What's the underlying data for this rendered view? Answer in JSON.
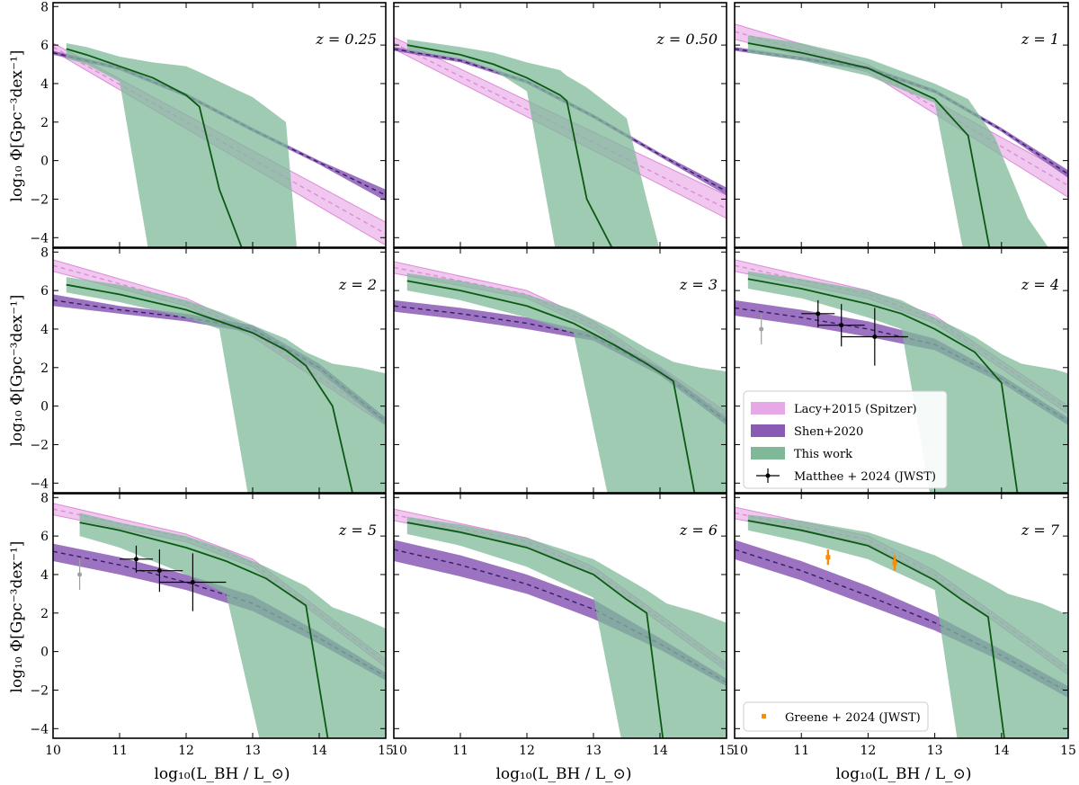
{
  "colors": {
    "lacy": "#e7a9e6",
    "lacy_line": "#e08ad8",
    "shen": "#8a5bb5",
    "shen_line": "#3a1a6a",
    "thiswork": "#7fb99a",
    "thiswork_line": "#0b5a12",
    "matthee": "#000000",
    "matthee_grey": "#a0a0a0",
    "greene": "#ff8c00"
  },
  "axes_text": {
    "xlabel": "log₁₀(L_BH / L_⊙)",
    "ylabel": "log₁₀ Φ[Gpc⁻³dex⁻¹]",
    "xlim": [
      10,
      15
    ],
    "ylim": [
      -4.5,
      8.2
    ],
    "xticks": [
      "10",
      "11",
      "12",
      "13",
      "14",
      "15"
    ],
    "yticks": [
      "−4",
      "−2",
      "0",
      "2",
      "4",
      "6",
      "8"
    ],
    "xtick_values": [
      10,
      11,
      12,
      13,
      14,
      15
    ],
    "ytick_values": [
      -4,
      -2,
      0,
      2,
      4,
      6,
      8
    ]
  },
  "legend": {
    "lacy": "Lacy+2015 (Spitzer)",
    "shen": "Shen+2020",
    "thiswork": "This work",
    "matthee": "Matthee + 2024 (JWST)",
    "greene": "Greene + 2024 (JWST)"
  },
  "chart_data": [
    {
      "type": "line",
      "z_label": "z = 0.25",
      "lacy": {
        "x": [
          10,
          15
        ],
        "mid": [
          5.9,
          -3.8
        ],
        "lo": [
          5.7,
          -4.4
        ],
        "hi": [
          6.1,
          -3.2
        ]
      },
      "shen": {
        "x": [
          10,
          11,
          12,
          13,
          14,
          15
        ],
        "mid": [
          5.6,
          4.8,
          3.4,
          1.6,
          -0.1,
          -1.8
        ],
        "lo": [
          5.5,
          4.7,
          3.3,
          1.5,
          -0.2,
          -2.1
        ],
        "hi": [
          5.7,
          4.9,
          3.5,
          1.7,
          0.0,
          -1.5
        ]
      },
      "thiswork": {
        "x": [
          10.2,
          10.5,
          11.0,
          11.5,
          12.0,
          12.2,
          12.5,
          13.0,
          13.5,
          13.7,
          15.0
        ],
        "mid": [
          5.8,
          5.5,
          4.9,
          4.3,
          3.4,
          2.8,
          -1.5,
          -6,
          -6,
          -6,
          -6
        ],
        "lo": [
          5.3,
          5.0,
          4.1,
          -6,
          -6,
          -6,
          -6,
          -6,
          -6,
          -6,
          -6
        ],
        "hi": [
          6.1,
          5.9,
          5.4,
          5.1,
          4.9,
          4.6,
          4.1,
          3.3,
          2.0,
          -6,
          -6
        ]
      },
      "points": []
    },
    {
      "type": "line",
      "z_label": "z = 0.50",
      "lacy": {
        "x": [
          10,
          15
        ],
        "mid": [
          6.1,
          -2.5
        ],
        "lo": [
          5.8,
          -3.0
        ],
        "hi": [
          6.4,
          -1.8
        ]
      },
      "shen": {
        "x": [
          10,
          11,
          12,
          13,
          14,
          15
        ],
        "mid": [
          5.8,
          5.2,
          4.1,
          2.3,
          0.3,
          -1.6
        ],
        "lo": [
          5.7,
          5.1,
          4.0,
          2.2,
          0.2,
          -1.8
        ],
        "hi": [
          5.9,
          5.3,
          4.2,
          2.4,
          0.4,
          -1.4
        ]
      },
      "thiswork": {
        "x": [
          10.2,
          11.0,
          11.5,
          12.0,
          12.5,
          12.6,
          12.9,
          13.5,
          13.8,
          14.1,
          15.0
        ],
        "mid": [
          6.0,
          5.5,
          5.0,
          4.3,
          3.4,
          3.1,
          -2,
          -6,
          -6,
          -6,
          -6
        ],
        "lo": [
          5.7,
          5.3,
          4.7,
          3.6,
          -6,
          -6,
          -6,
          -6,
          -6,
          -6,
          -6
        ],
        "hi": [
          6.3,
          5.9,
          5.6,
          5.1,
          4.7,
          4.4,
          3.8,
          2.2,
          -2,
          -6,
          -6
        ]
      },
      "points": []
    },
    {
      "type": "line",
      "z_label": "z = 1",
      "lacy": {
        "x": [
          10,
          12,
          15
        ],
        "mid": [
          6.7,
          4.8,
          -1.3
        ],
        "lo": [
          6.3,
          4.6,
          -1.9
        ],
        "hi": [
          7.1,
          5.0,
          -0.7
        ]
      },
      "shen": {
        "x": [
          10,
          11,
          12,
          13,
          14,
          15
        ],
        "mid": [
          5.8,
          5.3,
          4.8,
          3.6,
          1.6,
          -0.7
        ],
        "lo": [
          5.7,
          5.2,
          4.7,
          3.5,
          1.5,
          -0.9
        ],
        "hi": [
          5.9,
          5.4,
          4.9,
          3.7,
          1.7,
          -0.5
        ]
      },
      "thiswork": {
        "x": [
          10.2,
          11.0,
          12.0,
          13.0,
          13.5,
          13.9,
          14.4,
          15.0
        ],
        "mid": [
          6.1,
          5.6,
          4.8,
          3.2,
          1.3,
          -6,
          -6,
          -6
        ],
        "lo": [
          5.6,
          5.2,
          4.4,
          3.0,
          -6,
          -6,
          -6,
          -6
        ],
        "hi": [
          6.5,
          6.1,
          5.3,
          4.0,
          3.2,
          1.2,
          -3,
          -6
        ]
      },
      "points": []
    },
    {
      "type": "line",
      "z_label": "z = 2",
      "lacy": {
        "x": [
          10,
          12,
          13,
          15
        ],
        "mid": [
          7.3,
          5.4,
          3.8,
          -0.8
        ],
        "lo": [
          7.0,
          5.2,
          3.6,
          -1.0
        ],
        "hi": [
          7.6,
          5.6,
          4.0,
          -0.6
        ]
      },
      "shen": {
        "x": [
          10,
          11,
          12,
          13,
          14,
          15
        ],
        "mid": [
          5.5,
          5.0,
          4.6,
          4.0,
          2.0,
          -0.8
        ],
        "lo": [
          5.2,
          4.8,
          4.4,
          3.8,
          1.8,
          -1.0
        ],
        "hi": [
          5.8,
          5.2,
          4.8,
          4.2,
          2.2,
          -0.6
        ]
      },
      "thiswork": {
        "x": [
          10.2,
          11.0,
          12.0,
          12.5,
          13.0,
          13.5,
          13.8,
          14.2,
          14.6,
          15.0
        ],
        "mid": [
          6.3,
          5.8,
          5.0,
          4.4,
          3.8,
          2.9,
          2.1,
          0.0,
          -6,
          -6
        ],
        "lo": [
          5.9,
          5.4,
          4.6,
          4.0,
          -6,
          -6,
          -6,
          -6,
          -6,
          -6
        ],
        "hi": [
          6.7,
          6.3,
          5.5,
          4.9,
          4.2,
          3.5,
          2.8,
          2.2,
          2.0,
          1.7
        ]
      },
      "points": []
    },
    {
      "type": "line",
      "z_label": "z = 3",
      "lacy": {
        "x": [
          10,
          12,
          13,
          15
        ],
        "mid": [
          7.2,
          5.8,
          4.2,
          -0.5
        ],
        "lo": [
          6.9,
          5.6,
          4.0,
          -0.7
        ],
        "hi": [
          7.5,
          6.0,
          4.4,
          -0.3
        ]
      },
      "shen": {
        "x": [
          10,
          11,
          12,
          13,
          14,
          15
        ],
        "mid": [
          5.2,
          4.8,
          4.3,
          3.6,
          1.8,
          -0.8
        ],
        "lo": [
          4.9,
          4.5,
          4.0,
          3.4,
          1.6,
          -1.0
        ],
        "hi": [
          5.5,
          5.1,
          4.6,
          3.8,
          2.0,
          -0.6
        ]
      },
      "thiswork": {
        "x": [
          10.2,
          11.0,
          12.0,
          12.7,
          13.3,
          13.8,
          14.2,
          14.6,
          15.0
        ],
        "mid": [
          6.5,
          6.0,
          5.2,
          4.3,
          3.2,
          2.2,
          1.3,
          -6,
          -6
        ],
        "lo": [
          6.0,
          5.5,
          4.6,
          3.8,
          -6,
          -6,
          -6,
          -6,
          -6
        ],
        "hi": [
          6.9,
          6.5,
          5.8,
          5.0,
          4.0,
          3.0,
          2.3,
          2.0,
          1.8
        ]
      },
      "points": []
    },
    {
      "type": "line",
      "z_label": "z = 4",
      "lacy": {
        "x": [
          10,
          12,
          13,
          15
        ],
        "mid": [
          7.3,
          5.8,
          4.5,
          -0.2
        ],
        "lo": [
          7.0,
          5.6,
          4.3,
          -0.4
        ],
        "hi": [
          7.6,
          6.0,
          4.7,
          0.0
        ]
      },
      "shen": {
        "x": [
          10,
          11,
          12,
          13,
          14,
          15
        ],
        "mid": [
          5.1,
          4.6,
          4.0,
          3.2,
          1.4,
          -0.8
        ],
        "lo": [
          4.7,
          4.2,
          3.6,
          2.9,
          1.2,
          -1.0
        ],
        "hi": [
          5.5,
          5.0,
          4.4,
          3.5,
          1.6,
          -0.6
        ]
      },
      "thiswork": {
        "x": [
          10.2,
          11.0,
          12.0,
          12.5,
          13.0,
          13.6,
          14.0,
          14.3,
          14.8,
          15.0
        ],
        "mid": [
          6.6,
          6.1,
          5.3,
          4.8,
          4.0,
          2.8,
          1.2,
          -6,
          -6,
          -6
        ],
        "lo": [
          6.1,
          5.6,
          4.6,
          4.0,
          -6,
          -6,
          -6,
          -6,
          -6,
          -6
        ],
        "hi": [
          7.0,
          6.6,
          6.0,
          5.5,
          4.6,
          3.6,
          2.7,
          2.2,
          1.9,
          1.7
        ]
      },
      "points": [
        {
          "x": 11.25,
          "y": 4.8,
          "xerr": 0.25,
          "yerr": 0.7
        },
        {
          "x": 11.6,
          "y": 4.2,
          "xerr": 0.35,
          "yerr": 1.1
        },
        {
          "x": 12.1,
          "y": 3.6,
          "xerr": 0.5,
          "yerr": 1.5
        }
      ],
      "grey_points": [
        {
          "x": 10.4,
          "y": 4.0,
          "yerr": 0.8
        }
      ],
      "legend": "lower-left"
    },
    {
      "type": "line",
      "z_label": "z = 5",
      "lacy": {
        "x": [
          10,
          12,
          13,
          15
        ],
        "mid": [
          7.4,
          5.9,
          4.6,
          -0.6
        ],
        "lo": [
          7.1,
          5.7,
          4.4,
          -0.8
        ],
        "hi": [
          7.7,
          6.1,
          4.8,
          -0.4
        ]
      },
      "shen": {
        "x": [
          10,
          11,
          12,
          13,
          14,
          15
        ],
        "mid": [
          5.2,
          4.5,
          3.6,
          2.5,
          0.7,
          -1.3
        ],
        "lo": [
          4.7,
          4.0,
          3.2,
          2.1,
          0.4,
          -1.5
        ],
        "hi": [
          5.6,
          4.9,
          4.0,
          2.9,
          1.0,
          -1.1
        ]
      },
      "thiswork": {
        "x": [
          10.4,
          11.0,
          12.0,
          12.6,
          13.2,
          13.8,
          14.2,
          14.6,
          15.0
        ],
        "mid": [
          6.7,
          6.3,
          5.4,
          4.7,
          3.8,
          2.4,
          -6,
          -6,
          -6
        ],
        "lo": [
          6.0,
          5.4,
          4.0,
          3.0,
          -6,
          -6,
          -6,
          -6,
          -6
        ],
        "hi": [
          7.2,
          6.7,
          6.0,
          5.3,
          4.4,
          3.4,
          2.3,
          1.8,
          1.2
        ]
      },
      "points": [
        {
          "x": 11.25,
          "y": 4.8,
          "xerr": 0.25,
          "yerr": 0.7
        },
        {
          "x": 11.6,
          "y": 4.2,
          "xerr": 0.35,
          "yerr": 1.1
        },
        {
          "x": 12.1,
          "y": 3.6,
          "xerr": 0.5,
          "yerr": 1.5
        }
      ],
      "grey_points": [
        {
          "x": 10.4,
          "y": 4.0,
          "yerr": 0.8
        }
      ]
    },
    {
      "type": "line",
      "z_label": "z = 6",
      "lacy": {
        "x": [
          10,
          12,
          13,
          15
        ],
        "mid": [
          7.1,
          5.7,
          4.2,
          -0.8
        ],
        "lo": [
          6.8,
          5.5,
          4.0,
          -1.0
        ],
        "hi": [
          7.4,
          5.9,
          4.4,
          -0.6
        ]
      },
      "shen": {
        "x": [
          10,
          11,
          12,
          13,
          14,
          15
        ],
        "mid": [
          5.3,
          4.5,
          3.5,
          2.2,
          0.4,
          -1.6
        ],
        "lo": [
          4.7,
          3.9,
          3.0,
          1.7,
          0.1,
          -1.8
        ],
        "hi": [
          5.8,
          5.0,
          4.0,
          2.7,
          0.7,
          -1.4
        ]
      },
      "thiswork": {
        "x": [
          10.2,
          11.0,
          12.0,
          13.0,
          13.5,
          13.8,
          14.1,
          14.6,
          15.0
        ],
        "mid": [
          6.7,
          6.2,
          5.4,
          4.0,
          2.7,
          2.0,
          -6,
          -6,
          -6
        ],
        "lo": [
          6.1,
          5.5,
          4.4,
          2.8,
          -6,
          -6,
          -6,
          -6,
          -6
        ],
        "hi": [
          7.0,
          6.6,
          5.9,
          4.8,
          3.8,
          3.2,
          2.5,
          2.0,
          1.5
        ]
      },
      "points": []
    },
    {
      "type": "line",
      "z_label": "z = 7",
      "lacy": {
        "x": [
          10,
          12,
          13,
          15
        ],
        "mid": [
          7.2,
          5.8,
          4.0,
          -1.0
        ],
        "lo": [
          6.9,
          5.6,
          3.8,
          -1.2
        ],
        "hi": [
          7.5,
          6.0,
          4.2,
          -0.8
        ]
      },
      "shen": {
        "x": [
          10,
          11,
          12,
          13,
          14,
          15
        ],
        "mid": [
          5.3,
          4.2,
          2.9,
          1.5,
          -0.2,
          -2.1
        ],
        "lo": [
          4.8,
          3.7,
          2.4,
          1.1,
          -0.5,
          -2.4
        ],
        "hi": [
          5.8,
          4.7,
          3.4,
          1.9,
          0.1,
          -1.8
        ]
      },
      "thiswork": {
        "x": [
          10.2,
          11.0,
          12.0,
          13.0,
          13.4,
          13.8,
          14.1,
          14.6,
          15.0
        ],
        "mid": [
          6.8,
          6.3,
          5.5,
          3.7,
          2.7,
          1.8,
          -6,
          -6,
          -6
        ],
        "lo": [
          6.3,
          5.7,
          4.8,
          3.2,
          -6,
          -6,
          -6,
          -6,
          -6
        ],
        "hi": [
          7.1,
          6.8,
          6.2,
          5.0,
          4.3,
          3.6,
          3.0,
          2.5,
          1.9
        ]
      },
      "greene_points": [
        {
          "x": 11.4,
          "y": 4.9,
          "yerr": 0.4
        },
        {
          "x": 12.4,
          "y": 4.6,
          "yerr": 0.4
        }
      ],
      "legend": "lower-left"
    }
  ]
}
